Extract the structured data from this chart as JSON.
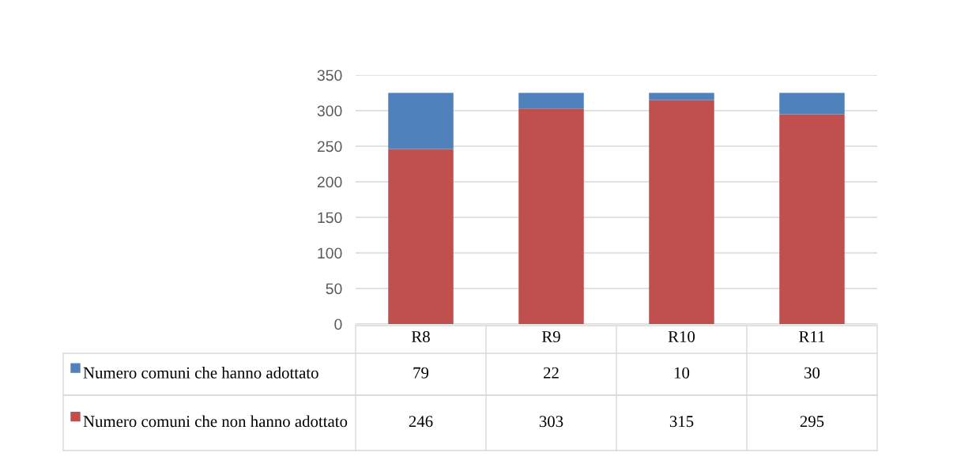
{
  "chart_data": {
    "type": "bar",
    "stacked": true,
    "categories": [
      "R8",
      "R9",
      "R10",
      "R11"
    ],
    "series": [
      {
        "name": "Numero comuni che non hanno adottato",
        "color": "#c0504d",
        "values": [
          246,
          303,
          315,
          295
        ]
      },
      {
        "name": "Numero comuni che hanno adottato",
        "color": "#4f81bd",
        "values": [
          79,
          22,
          10,
          30
        ]
      }
    ],
    "ylim": [
      0,
      350
    ],
    "yticks": [
      0,
      50,
      100,
      150,
      200,
      250,
      300,
      350
    ],
    "grid": "y",
    "data_labels": true,
    "legend": "bottom"
  }
}
